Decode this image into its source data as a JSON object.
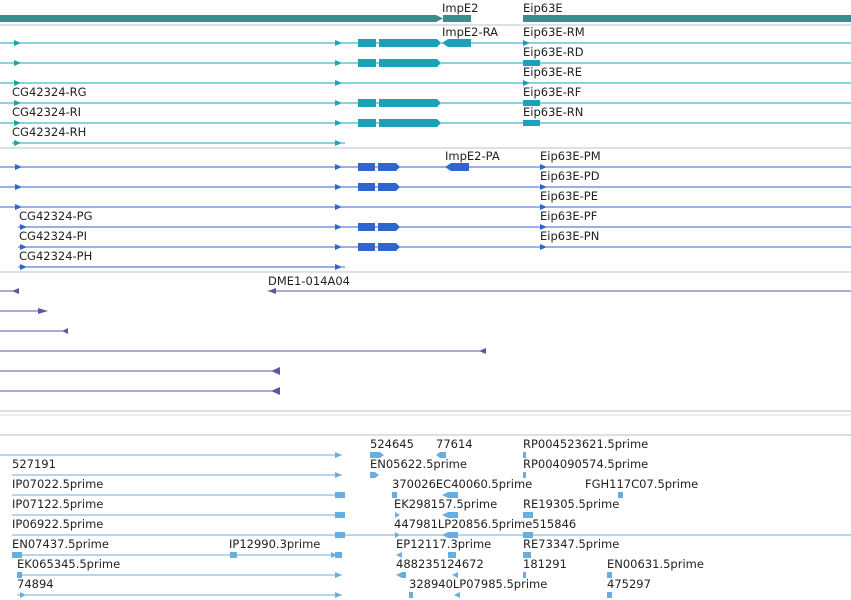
{
  "colors": {
    "gene": "#3d8b8b",
    "teal": "#1aa3b8",
    "blue": "#2e66cf",
    "purple": "#6b4fa8",
    "lightblue": "#6aaede",
    "separator": "#b8c2d0"
  },
  "gene_track": {
    "labels": [
      {
        "id": "impe2",
        "text": "ImpE2"
      },
      {
        "id": "eip63e",
        "text": "Eip63E"
      }
    ]
  },
  "transcript_track_1": {
    "labels": [
      {
        "id": "impe2-ra",
        "text": "ImpE2-RA"
      },
      {
        "id": "eip63e-rm",
        "text": "Eip63E-RM"
      },
      {
        "id": "eip63e-rd",
        "text": "Eip63E-RD"
      },
      {
        "id": "eip63e-re",
        "text": "Eip63E-RE"
      },
      {
        "id": "cg42324-rg",
        "text": "CG42324-RG"
      },
      {
        "id": "eip63e-rf",
        "text": "Eip63E-RF"
      },
      {
        "id": "cg42324-ri",
        "text": "CG42324-RI"
      },
      {
        "id": "eip63e-rn",
        "text": "Eip63E-RN"
      },
      {
        "id": "cg42324-rh",
        "text": "CG42324-RH"
      }
    ]
  },
  "transcript_track_2": {
    "labels": [
      {
        "id": "impe2-pa",
        "text": "ImpE2-PA"
      },
      {
        "id": "eip63e-pm",
        "text": "Eip63E-PM"
      },
      {
        "id": "eip63e-pd",
        "text": "Eip63E-PD"
      },
      {
        "id": "eip63e-pe",
        "text": "Eip63E-PE"
      },
      {
        "id": "cg42324-pg",
        "text": "CG42324-PG"
      },
      {
        "id": "eip63e-pf",
        "text": "Eip63E-PF"
      },
      {
        "id": "cg42324-pi",
        "text": "CG42324-PI"
      },
      {
        "id": "eip63e-pn",
        "text": "Eip63E-PN"
      },
      {
        "id": "cg42324-ph",
        "text": "CG42324-PH"
      }
    ]
  },
  "clone_track": {
    "labels": [
      {
        "id": "dme1-014a04",
        "text": "DME1-014A04"
      }
    ]
  },
  "est_track": {
    "labels": [
      {
        "id": "est-524645",
        "text": "524645"
      },
      {
        "id": "est-77614",
        "text": "77614"
      },
      {
        "id": "est-rp004523621",
        "text": "RP004523621.5prime"
      },
      {
        "id": "est-527191",
        "text": "527191"
      },
      {
        "id": "est-en05622",
        "text": "EN05622.5prime"
      },
      {
        "id": "est-rp004090574",
        "text": "RP004090574.5prime"
      },
      {
        "id": "est-ip07022",
        "text": "IP07022.5prime"
      },
      {
        "id": "est-370026ec40060",
        "text": "370026EC40060.5prime"
      },
      {
        "id": "est-fgh117c07",
        "text": "FGH117C07.5prime"
      },
      {
        "id": "est-ip07122",
        "text": "IP07122.5prime"
      },
      {
        "id": "est-ek298157",
        "text": "EK298157.5prime"
      },
      {
        "id": "est-re19305",
        "text": "RE19305.5prime"
      },
      {
        "id": "est-ip06922",
        "text": "IP06922.5prime"
      },
      {
        "id": "est-447981lp20856",
        "text": "447981LP20856.5prime515846"
      },
      {
        "id": "est-en07437",
        "text": "EN07437.5prime"
      },
      {
        "id": "est-ip12990",
        "text": "IP12990.3prime"
      },
      {
        "id": "est-ep12117",
        "text": "EP12117.3prime"
      },
      {
        "id": "est-re73347",
        "text": "RE73347.5prime"
      },
      {
        "id": "est-ek065345",
        "text": "EK065345.5prime"
      },
      {
        "id": "est-488235124672",
        "text": "488235124672"
      },
      {
        "id": "est-181291",
        "text": "181291"
      },
      {
        "id": "est-en00631",
        "text": "EN00631.5prime"
      },
      {
        "id": "est-74894",
        "text": "74894"
      },
      {
        "id": "est-328940lp07985",
        "text": "328940LP07985.5prime"
      },
      {
        "id": "est-475297",
        "text": "475297"
      }
    ]
  }
}
